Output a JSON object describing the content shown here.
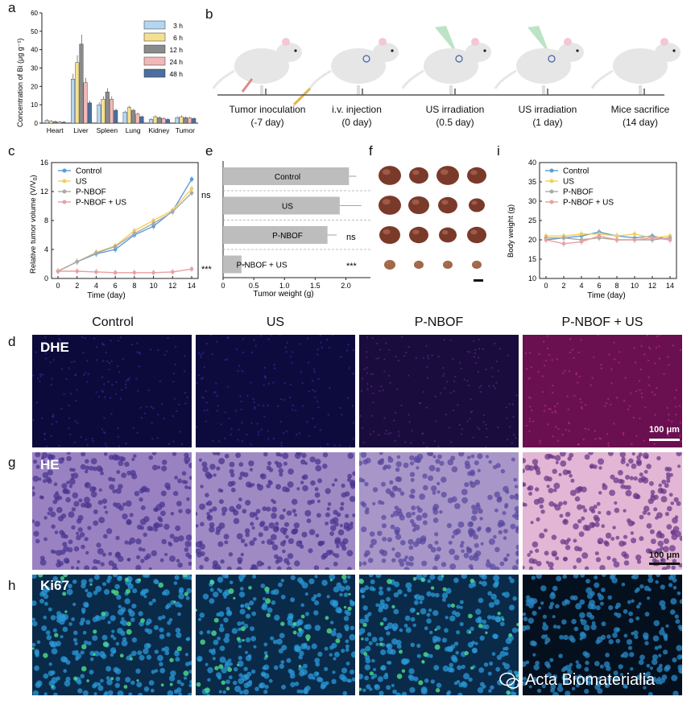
{
  "panels": {
    "a": {
      "letter": "a",
      "ylabel": "Concentration of Bi (μg g⁻¹)",
      "yticks": [
        "0",
        "10",
        "20",
        "30",
        "40",
        "50",
        "60"
      ],
      "legend": [
        "3 h",
        "6 h",
        "12 h",
        "24 h",
        "48 h"
      ],
      "colors": [
        "#b3d7f0",
        "#f5e090",
        "#8a8a8a",
        "#f2b8b8",
        "#4a6fa0"
      ]
    },
    "b": {
      "letter": "b",
      "timeline": [
        {
          "label": "Tumor inoculation",
          "sub": "(-7 day)"
        },
        {
          "label": "i.v. injection",
          "sub": "(0 day)"
        },
        {
          "label": "US irradiation",
          "sub": "(0.5 day)"
        },
        {
          "label": "US irradiation",
          "sub": "(1 day)"
        },
        {
          "label": "Mice sacrifice",
          "sub": "(14 day)"
        }
      ]
    },
    "c": {
      "letter": "c",
      "ylabel": "Relative tumor volume (V/V",
      "ylabel_sub": "0",
      "ylabel_end": ")",
      "yticks": [
        "0",
        "4",
        "8",
        "12",
        "16"
      ],
      "xlabel": "Time (day)",
      "xticks": [
        "0",
        "2",
        "4",
        "6",
        "8",
        "10",
        "12",
        "14"
      ],
      "legend": [
        "Control",
        "US",
        "P-NBOF",
        "P-NBOF + US"
      ],
      "ns": "ns",
      "stars": "***"
    },
    "e": {
      "letter": "e",
      "xlabel": "Tumor weight (g)",
      "xticks": [
        "0",
        "0.5",
        "1.0",
        "1.5",
        "2.0"
      ],
      "ns": "ns",
      "stars": "***"
    },
    "f": {
      "letter": "f"
    },
    "i": {
      "letter": "i",
      "ylabel": "Body weight (g)",
      "yticks": [
        "10",
        "15",
        "20",
        "25",
        "30",
        "35",
        "40"
      ],
      "xlabel": "Time (day)",
      "xticks": [
        "0",
        "2",
        "4",
        "6",
        "8",
        "10",
        "12",
        "14"
      ],
      "legend": [
        "Control",
        "US",
        "P-NBOF",
        "P-NBOF + US"
      ]
    },
    "d": {
      "letter": "d",
      "tag": "DHE",
      "scale": "100 μm"
    },
    "g": {
      "letter": "g",
      "tag": "HE",
      "scale": "100 μm"
    },
    "h": {
      "letter": "h",
      "tag": "Ki67"
    }
  },
  "columns": [
    "Control",
    "US",
    "P-NBOF",
    "P-NBOF + US"
  ],
  "watermark": "Acta Biomaterialia",
  "chart_data": [
    {
      "id": "a",
      "type": "bar",
      "categories": [
        "Heart",
        "Liver",
        "Spleen",
        "Lung",
        "Kidney",
        "Tumor"
      ],
      "series": [
        {
          "name": "3 h",
          "values": [
            1.5,
            24,
            10,
            6,
            2,
            3
          ]
        },
        {
          "name": "6 h",
          "values": [
            1,
            33,
            13,
            8.5,
            3.5,
            3.5
          ]
        },
        {
          "name": "12 h",
          "values": [
            0.8,
            43,
            17,
            7,
            3,
            3
          ]
        },
        {
          "name": "24 h",
          "values": [
            0.6,
            22,
            13,
            5,
            2.5,
            2.8
          ]
        },
        {
          "name": "48 h",
          "values": [
            0.5,
            11,
            7,
            3.5,
            2,
            2.5
          ]
        }
      ],
      "ylabel": "Concentration of Bi (μg g⁻¹)",
      "ylim": [
        0,
        60
      ]
    },
    {
      "id": "c",
      "type": "line",
      "x": [
        0,
        2,
        4,
        6,
        8,
        10,
        12,
        14
      ],
      "series": [
        {
          "name": "Control",
          "color": "#5a9bd5",
          "values": [
            1,
            2.3,
            3.4,
            4,
            6,
            7.2,
            9.3,
            13.7
          ]
        },
        {
          "name": "US",
          "color": "#f2cf5b",
          "values": [
            1,
            2.3,
            3.6,
            4.5,
            6.6,
            8,
            9.4,
            12.4
          ]
        },
        {
          "name": "P-NBOF",
          "color": "#a9a9a9",
          "values": [
            1,
            2.3,
            3.5,
            4.4,
            6.2,
            7.6,
            9.2,
            11.8
          ]
        },
        {
          "name": "P-NBOF + US",
          "color": "#e8a0a0",
          "values": [
            1,
            1,
            0.9,
            0.8,
            0.8,
            0.8,
            0.9,
            1.3
          ]
        }
      ],
      "xlabel": "Time (day)",
      "ylabel": "Relative tumor volume (V/V0)",
      "ylim": [
        0,
        16
      ]
    },
    {
      "id": "e",
      "type": "bar",
      "orientation": "horizontal",
      "categories": [
        "Control",
        "US",
        "P-NBOF",
        "P-NBOF + US"
      ],
      "values": [
        2.05,
        1.9,
        1.7,
        0.3
      ],
      "errors": [
        0.12,
        0.35,
        0.15,
        0.1
      ],
      "xlabel": "Tumor weight (g)",
      "xlim": [
        0,
        2.4
      ]
    },
    {
      "id": "i",
      "type": "line",
      "x": [
        0,
        2,
        4,
        6,
        8,
        10,
        12,
        14
      ],
      "series": [
        {
          "name": "Control",
          "color": "#5a9bd5",
          "values": [
            20,
            20.5,
            21,
            22,
            21,
            20.5,
            21,
            20
          ]
        },
        {
          "name": "US",
          "color": "#f2cf5b",
          "values": [
            21,
            21,
            21.5,
            21.5,
            21,
            21.5,
            20.5,
            21
          ]
        },
        {
          "name": "P-NBOF",
          "color": "#a9a9a9",
          "values": [
            20.5,
            20.5,
            20,
            20.5,
            20,
            20,
            20,
            20.5
          ]
        },
        {
          "name": "P-NBOF + US",
          "color": "#e8a0a0",
          "values": [
            20,
            19,
            19.5,
            21,
            20,
            20,
            20.5,
            20
          ]
        }
      ],
      "xlabel": "Time (day)",
      "ylabel": "Body weight (g)",
      "ylim": [
        10,
        40
      ]
    }
  ]
}
